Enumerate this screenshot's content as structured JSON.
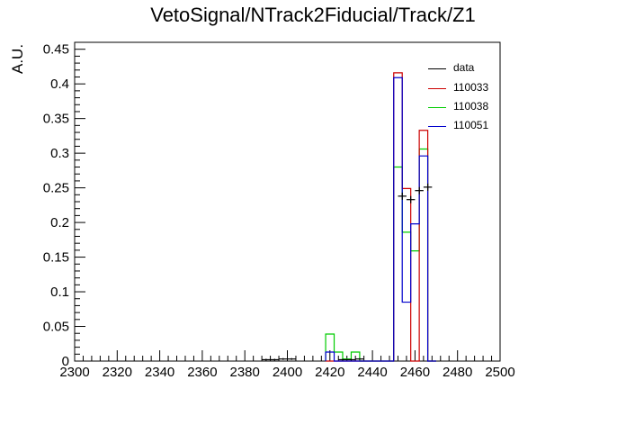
{
  "chart_data": {
    "type": "histogram",
    "title": "VetoSignal/NTrack2Fiducial/Track/Z1",
    "xlabel": "",
    "ylabel": "A.U.",
    "xlim": [
      2300,
      2500
    ],
    "ylim": [
      0,
      0.46
    ],
    "xticks": [
      "2300",
      "2320",
      "2340",
      "2360",
      "2380",
      "2400",
      "2420",
      "2440",
      "2460",
      "2480",
      "2500"
    ],
    "yticks": [
      "0",
      "0.05",
      "0.1",
      "0.15",
      "0.2",
      "0.25",
      "0.3",
      "0.35",
      "0.4",
      "0.45"
    ],
    "bin_edges": [
      2418,
      2422,
      2426,
      2430,
      2434,
      2438,
      2442,
      2446,
      2450,
      2454,
      2458,
      2462,
      2466,
      2470
    ],
    "legend_placement": "top-right",
    "series": [
      {
        "name": "data",
        "color": "#000000",
        "style": "points",
        "points": [
          {
            "x": 2390,
            "y": 0.002
          },
          {
            "x": 2394,
            "y": 0.002
          },
          {
            "x": 2398,
            "y": 0.003
          },
          {
            "x": 2402,
            "y": 0.003
          },
          {
            "x": 2426,
            "y": 0.002
          },
          {
            "x": 2430,
            "y": 0.002
          },
          {
            "x": 2434,
            "y": 0.003
          },
          {
            "x": 2454,
            "y": 0.238
          },
          {
            "x": 2458,
            "y": 0.233
          },
          {
            "x": 2462,
            "y": 0.246
          },
          {
            "x": 2466,
            "y": 0.251
          }
        ]
      },
      {
        "name": "110033",
        "color": "#cc0000",
        "style": "step",
        "values": [
          0,
          0,
          0,
          0,
          0,
          0,
          0,
          0,
          0.416,
          0.249,
          0,
          0.333,
          0
        ]
      },
      {
        "name": "110038",
        "color": "#00cc00",
        "style": "step",
        "values": [
          0.039,
          0.013,
          0.003,
          0.013,
          0,
          0,
          0,
          0,
          0.28,
          0.186,
          0.159,
          0.306,
          0
        ]
      },
      {
        "name": "110051",
        "color": "#0000cc",
        "style": "step",
        "values": [
          0.013,
          0,
          0,
          0,
          0,
          0,
          0,
          0,
          0.409,
          0.085,
          0.198,
          0.296,
          0
        ]
      }
    ]
  }
}
